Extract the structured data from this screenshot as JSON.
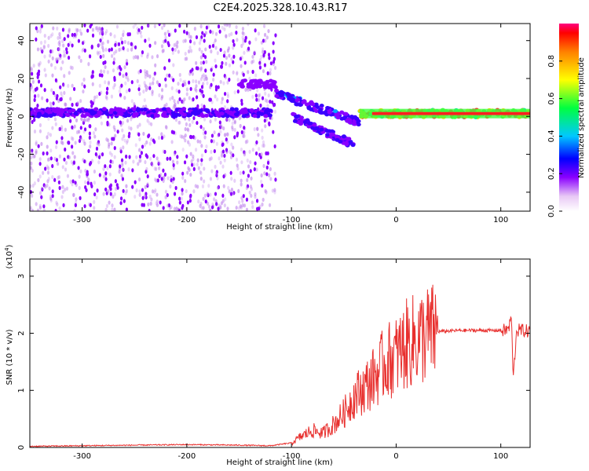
{
  "title": "C2E4.2025.328.10.43.R17",
  "chart_data": [
    {
      "type": "heatmap",
      "xlabel": "Height of straight line (km)",
      "ylabel": "Frequency (Hz)",
      "xlim": [
        -350,
        128
      ],
      "ylim": [
        -50,
        49
      ],
      "xticks": [
        -300,
        -200,
        -100,
        0,
        100
      ],
      "yticks": [
        -40,
        -20,
        0,
        20,
        40
      ],
      "colorbar": {
        "label": "Normalized spectral amplitude",
        "range": [
          0.0,
          1.0
        ],
        "ticks": [
          0.0,
          0.2,
          0.4,
          0.6,
          0.8
        ],
        "tick_labels": [
          "0.0",
          "0.2",
          "0.4",
          "0.6",
          "0.8"
        ]
      },
      "features": [
        {
          "x": [
            -350,
            -120
          ],
          "freq": 2,
          "amplitude": 0.25
        },
        {
          "x": [
            -150,
            -115
          ],
          "freq": 17,
          "amplitude": 0.2
        },
        {
          "x": [
            -115,
            -35
          ],
          "freq": [
            12,
            -3
          ],
          "amplitude": 0.3
        },
        {
          "x": [
            -100,
            -40
          ],
          "freq": [
            0,
            -15
          ],
          "amplitude": 0.25
        },
        {
          "x": [
            -35,
            128
          ],
          "freq": 1.5,
          "amplitude": 0.85
        }
      ]
    },
    {
      "type": "line",
      "xlabel": "Height of straight line (km)",
      "ylabel": "SNR (10 * v/v)",
      "ylabel_scale": "(x10",
      "ylabel_scale_exp": "4",
      "xlim": [
        -350,
        128
      ],
      "ylim": [
        0,
        3.3
      ],
      "xticks": [
        -300,
        -200,
        -100,
        0,
        100
      ],
      "yticks": [
        0,
        1,
        2,
        3
      ],
      "series": [
        {
          "color": "#e8302e",
          "x": [
            -350,
            -300,
            -200,
            -150,
            -120,
            -100,
            -90,
            -80,
            -70,
            -60,
            -50,
            -40,
            -30,
            -20,
            -10,
            0,
            10,
            20,
            30,
            40,
            60,
            80,
            100,
            105,
            108,
            110,
            112,
            115,
            120,
            128
          ],
          "y": [
            0.02,
            0.03,
            0.05,
            0.04,
            0.03,
            0.08,
            0.2,
            0.3,
            0.25,
            0.4,
            0.6,
            0.9,
            1.05,
            1.25,
            1.5,
            1.6,
            1.8,
            1.9,
            1.98,
            2.03,
            2.05,
            2.05,
            2.05,
            2.05,
            2.1,
            2.3,
            1.2,
            2.05,
            2.05,
            2.03
          ]
        }
      ]
    }
  ]
}
